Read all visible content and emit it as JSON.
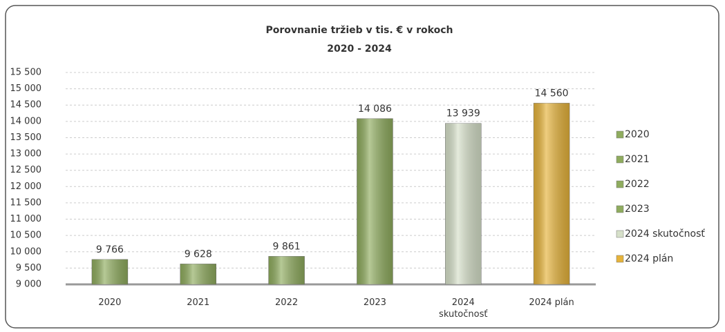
{
  "chart_data": {
    "type": "bar",
    "title": "Porovnanie tržieb v tis. € v rokoch",
    "subtitle": "2020 - 2024",
    "categories": [
      "2020",
      "2021",
      "2022",
      "2023",
      "2024 skutočnosť",
      "2024 plán"
    ],
    "values": [
      9766,
      9628,
      9861,
      14086,
      13939,
      14560
    ],
    "value_labels": [
      "9 766",
      "9 628",
      "9 861",
      "14 086",
      "13 939",
      "14 560"
    ],
    "colors": [
      "#8fac5e",
      "#8fac5e",
      "#8fac5e",
      "#8fac5e",
      "#d6e0c9",
      "#e6b33a"
    ],
    "ylim": [
      9000,
      15500
    ],
    "yticks": [
      {
        "value": 9000,
        "label": "9 000"
      },
      {
        "value": 9500,
        "label": "9 500"
      },
      {
        "value": 10000,
        "label": "10 000"
      },
      {
        "value": 10500,
        "label": "10 500"
      },
      {
        "value": 11000,
        "label": "11 000"
      },
      {
        "value": 11500,
        "label": "11 500"
      },
      {
        "value": 12000,
        "label": "12 000"
      },
      {
        "value": 12500,
        "label": "12 500"
      },
      {
        "value": 13000,
        "label": "13 000"
      },
      {
        "value": 13500,
        "label": "13 500"
      },
      {
        "value": 14000,
        "label": "14 000"
      },
      {
        "value": 14500,
        "label": "14 500"
      },
      {
        "value": 15000,
        "label": "15 000"
      },
      {
        "value": 15500,
        "label": "15 500"
      }
    ],
    "grid": true,
    "legend": "right"
  }
}
